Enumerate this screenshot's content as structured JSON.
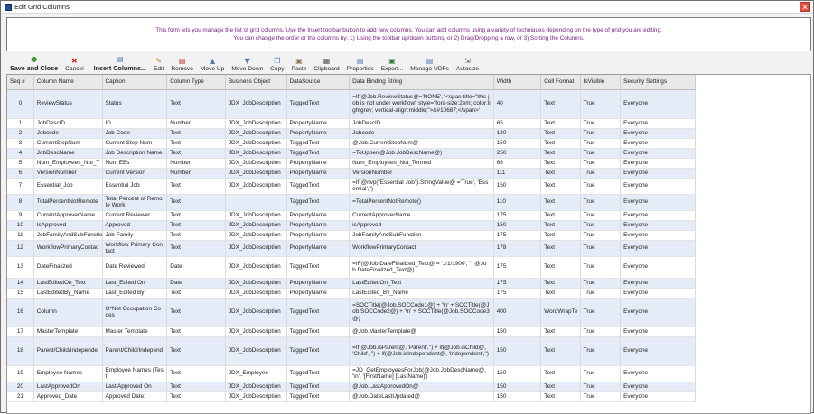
{
  "window": {
    "title": "Edit Grid Columns",
    "close_label": "✕"
  },
  "description": {
    "line1": "This form lets you manage the list of grid columns.  Use the Insert toolbar button to add new columns. You can add columns using a variety of techniques depending on the type of grid you are editing.",
    "line2": "You can change the order or the columns by: 1) Using the toolbar up/down buttons, or 2) Drag/Dropping a row, or 3) Sorting the Columns."
  },
  "toolbar": [
    {
      "name": "save-and-close-button",
      "icon": "check-circle-icon",
      "glyph": "●",
      "color": "#3a9c2b",
      "label": "Save and Close",
      "bold": true
    },
    {
      "name": "cancel-button",
      "icon": "x-icon",
      "glyph": "✖",
      "color": "#c8342a",
      "label": "Cancel"
    },
    {
      "sep": true
    },
    {
      "name": "insert-columns-button",
      "icon": "insert-icon",
      "glyph": "▤",
      "color": "#5575b5",
      "label": "Insert Columns...",
      "bold": true
    },
    {
      "name": "edit-button",
      "icon": "edit-icon",
      "glyph": "✎",
      "color": "#b08a2e",
      "label": "Edit"
    },
    {
      "name": "remove-button",
      "icon": "remove-icon",
      "glyph": "▤",
      "color": "#c8342a",
      "label": "Remove"
    },
    {
      "name": "move-up-button",
      "icon": "move-up-icon",
      "glyph": "▲",
      "color": "#5575b5",
      "label": "Move Up"
    },
    {
      "name": "move-down-button",
      "icon": "move-down-icon",
      "glyph": "▼",
      "color": "#5575b5",
      "label": "Move Down"
    },
    {
      "name": "copy-button",
      "icon": "copy-icon",
      "glyph": "❐",
      "color": "#5575b5",
      "label": "Copy"
    },
    {
      "name": "paste-button",
      "icon": "paste-icon",
      "glyph": "▣",
      "color": "#8a7a55",
      "label": "Paste"
    },
    {
      "name": "clipboard-button",
      "icon": "clipboard-icon",
      "glyph": "▦",
      "color": "#555",
      "label": "Clipboard"
    },
    {
      "name": "properties-button",
      "icon": "properties-icon",
      "glyph": "▤",
      "color": "#5575b5",
      "label": "Properties"
    },
    {
      "name": "export-button",
      "icon": "excel-icon",
      "glyph": "▣",
      "color": "#2e7d32",
      "label": "Export..."
    },
    {
      "name": "manage-udfs-button",
      "icon": "udf-icon",
      "glyph": "▤",
      "color": "#5575b5",
      "label": "Manage UDFs"
    },
    {
      "name": "autosize-button",
      "icon": "autosize-icon",
      "glyph": "⇲",
      "color": "#555",
      "label": "Autosize"
    }
  ],
  "grid": {
    "headers": [
      "Seq #",
      "Column Name",
      "Caption",
      "Column Type",
      "Business Object",
      "DataSource",
      "Data Binding String",
      "Width",
      "Cell Format",
      "IsVisible",
      "Security Settings"
    ],
    "rows": [
      {
        "h": "r4",
        "c": [
          "0",
          "ReviewStatus",
          "Status",
          "Text",
          "JDX_JobDescription",
          "TaggedText",
          "=If(@Job.ReviewStatus@='NONE', '<span title=\"this job is not under workflow\" style=\"font-size:2em; color:lightgrey; vertical-align:middle;\">&#10687;</span>'",
          "40",
          "Text",
          "True",
          "Everyone"
        ]
      },
      {
        "h": "r1",
        "c": [
          "1",
          "JobDescID",
          "ID",
          "Number",
          "JDX_JobDescription",
          "PropertyName",
          "JobDescID",
          "65",
          "Text",
          "True",
          "Everyone"
        ]
      },
      {
        "h": "r1",
        "c": [
          "2",
          "Jobcode",
          "Job Code",
          "Text",
          "JDX_JobDescription",
          "PropertyName",
          "Jobcode",
          "130",
          "Text",
          "True",
          "Everyone"
        ]
      },
      {
        "h": "r1",
        "c": [
          "3",
          "CurrentStepNum",
          "Current Step Num",
          "Text",
          "JDX_JobDescription",
          "TaggedText",
          "@Job.CurrentStepNum@",
          "150",
          "Text",
          "True",
          "Everyone"
        ]
      },
      {
        "h": "r1",
        "c": [
          "4",
          "JobDescName",
          "Job Description Name",
          "Text",
          "JDX_JobDescription",
          "TaggedText",
          "=ToUpper(@Job.JobDescName@)",
          "250",
          "Text",
          "True",
          "Everyone"
        ]
      },
      {
        "h": "r1",
        "c": [
          "5",
          "Num_Employees_Not_T",
          "Num EEs",
          "Number",
          "JDX_JobDescription",
          "PropertyName",
          "Num_Employees_Not_Termed",
          "68",
          "Text",
          "True",
          "Everyone"
        ]
      },
      {
        "h": "r1",
        "c": [
          "6",
          "VersionNumber",
          "Current Version",
          "Number",
          "JDX_JobDescription",
          "PropertyName",
          "VersionNumber",
          "111",
          "Text",
          "True",
          "Everyone"
        ]
      },
      {
        "h": "r2",
        "c": [
          "7",
          "Essential_Job",
          "Essential Job",
          "Text",
          "JDX_JobDescription",
          "TaggedText",
          "=If(@nvp(\"Essential Job\").StringValue@ ='True', 'Essential','')",
          "150",
          "Text",
          "True",
          "Everyone"
        ]
      },
      {
        "h": "r2",
        "c": [
          "8",
          "TotalPercentNotRemote",
          "Total Percent of Remote Work",
          "Text",
          "",
          "TaggedText",
          "=TotalPercentNotRemote()",
          "110",
          "Text",
          "True",
          "Everyone"
        ]
      },
      {
        "h": "r1",
        "c": [
          "9",
          "CurrentApproverName",
          "Current Reviewer",
          "Text",
          "JDX_JobDescription",
          "PropertyName",
          "CurrentApproverName",
          "175",
          "Text",
          "True",
          "Everyone"
        ]
      },
      {
        "h": "r1",
        "c": [
          "10",
          "IsApproved",
          "Approved",
          "Text",
          "JDX_JobDescription",
          "PropertyName",
          "isApproved",
          "150",
          "Text",
          "True",
          "Everyone"
        ]
      },
      {
        "h": "r1",
        "c": [
          "11",
          "JobFamilyAndSubFunctio",
          "Job Family",
          "Text",
          "JDX_JobDescription",
          "PropertyName",
          "JobFamilyAndSubFunction",
          "175",
          "Text",
          "True",
          "Everyone"
        ]
      },
      {
        "h": "r2",
        "c": [
          "12",
          "WorkflowPrimaryContac",
          "Workflow Primary Contact",
          "Text",
          "JDX_JobDescription",
          "PropertyName",
          "WorkflowPrimaryContact",
          "178",
          "Text",
          "True",
          "Everyone"
        ]
      },
      {
        "h": "r3",
        "c": [
          "13",
          "DateFinalized",
          "Date Reviewed",
          "Date",
          "JDX_JobDescription",
          "TaggedText",
          "=IF(@Job.DateFinalized_Text@ = '1/1/1900', '', @Job.DateFinalized_Text@)",
          "175",
          "Text",
          "True",
          "Everyone"
        ]
      },
      {
        "h": "r1",
        "c": [
          "14",
          "LastEditedOn_Text",
          "Last_Edited On",
          "Date",
          "JDX_JobDescription",
          "PropertyName",
          "LastEditedOn_Text",
          "175",
          "Text",
          "True",
          "Everyone"
        ]
      },
      {
        "h": "r1",
        "c": [
          "15",
          "LastEditedBy_Name",
          "Last_Edited By",
          "Text",
          "JDX_JobDescription",
          "PropertyName",
          "LastEdited_By_Name",
          "175",
          "Text",
          "True",
          "Everyone"
        ]
      },
      {
        "h": "r4",
        "c": [
          "16",
          "Column",
          "O*Net Occupation Codes",
          "Text",
          "JDX_JobDescription",
          "TaggedText",
          "=SOCTitle(@Job.SOCCode1@) + '\\n' + SOCTitle(@Job.SOCCode2@) + '\\n' + SOCTitle(@Job.SOCCode3@)",
          "400",
          "WordWrapTe",
          "True",
          "Everyone"
        ]
      },
      {
        "h": "r1",
        "c": [
          "17",
          "MasterTemplate",
          "Master Template",
          "Text",
          "JDX_JobDescription",
          "TaggedText",
          "@Job.MasterTemplate@",
          "150",
          "Text",
          "True",
          "Everyone"
        ]
      },
      {
        "h": "r4",
        "c": [
          "18",
          "Parent/Child/Independe",
          "Parent/Child/Independ",
          "Text",
          "JDX_JobDescription",
          "TaggedText",
          "=If(@Job.isParent@, 'Parent','') + if(@Job.isChild@, 'Child', '') + if(@Job.isIndependent@, 'Independent','')",
          "150",
          "Text",
          "True",
          "Everyone"
        ]
      },
      {
        "h": "r2",
        "c": [
          "19",
          "Employee Names",
          "Employee Names (Test)",
          "Text",
          "JDX_Employee",
          "TaggedText",
          "=JD_GetEmployeesForJob(@Job.JobDescName@, '\\n', '[FirstName] [LastName]')",
          "150",
          "Text",
          "True",
          "Everyone"
        ]
      },
      {
        "h": "r1",
        "c": [
          "20",
          "LastApprovedOn",
          "Last Approved On",
          "Text",
          "JDX_JobDescription",
          "TaggedText",
          "@Job.LastApprovedOn@",
          "150",
          "Text",
          "True",
          "Everyone"
        ]
      },
      {
        "h": "r1",
        "c": [
          "21",
          "Approved_Date",
          "Approved Date:",
          "Text",
          "JDX_JobDescription",
          "TaggedText",
          "@Job.DateLastUpdated@",
          "150",
          "Text",
          "True",
          "Everyone"
        ]
      }
    ]
  }
}
